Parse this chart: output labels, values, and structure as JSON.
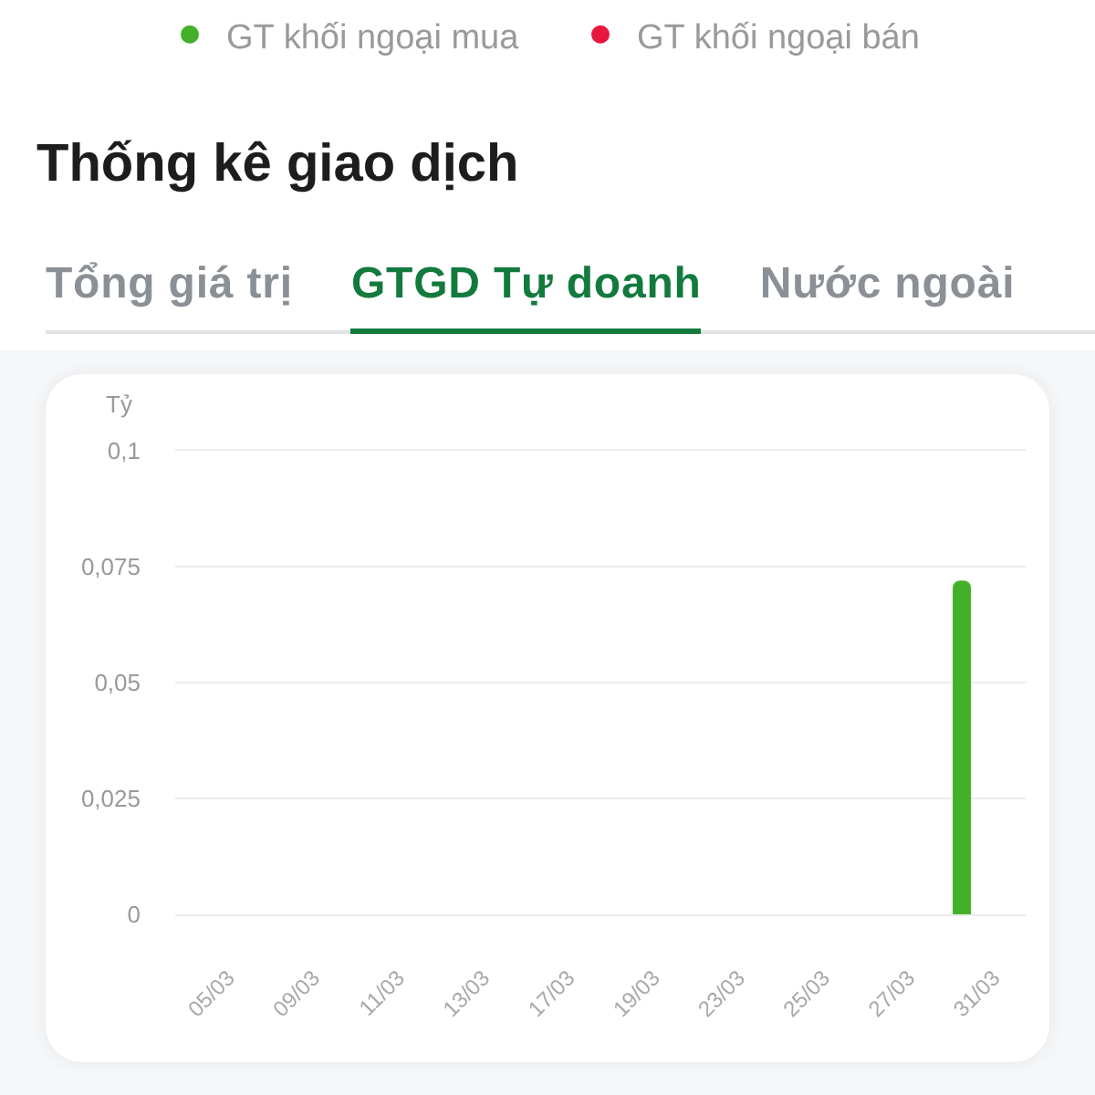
{
  "chart_data": {
    "type": "bar",
    "title": "Thống kê giao dịch",
    "ylabel": "Tỷ",
    "annotations": [
      "Tổng giá trị",
      "GTGD Tự doanh",
      "Nước ngoài"
    ],
    "categories": [
      null,
      "05/03",
      null,
      "09/03",
      null,
      "11/03",
      null,
      "13/03",
      null,
      "17/03",
      null,
      "19/03",
      null,
      "23/03",
      null,
      "25/03",
      null,
      "27/03",
      null,
      "31/03"
    ],
    "series": [
      {
        "name": "GT khối ngoại mua",
        "color": "#43b02a",
        "values": [
          0,
          0,
          0,
          0,
          0,
          0,
          0,
          0,
          0,
          0,
          0,
          0,
          0,
          0,
          0,
          0,
          0,
          0,
          0.072,
          0
        ]
      },
      {
        "name": "GT khối ngoại bán",
        "color": "#e8173d",
        "values": [
          0,
          0,
          0,
          0,
          0,
          0,
          0,
          0,
          0,
          0,
          0,
          0,
          0,
          0,
          0,
          0,
          0,
          0,
          0,
          0
        ]
      }
    ],
    "ylim": [
      0,
      0.1
    ],
    "yticks": [
      0,
      {
        "value": 0.025,
        "label": "0,025"
      },
      {
        "value": 0.05,
        "label": "0,05"
      },
      {
        "value": 0.075,
        "label": "0,075"
      },
      {
        "value": 0.1,
        "label": "0,1"
      }
    ],
    "grid": "y",
    "legend": "top"
  }
}
